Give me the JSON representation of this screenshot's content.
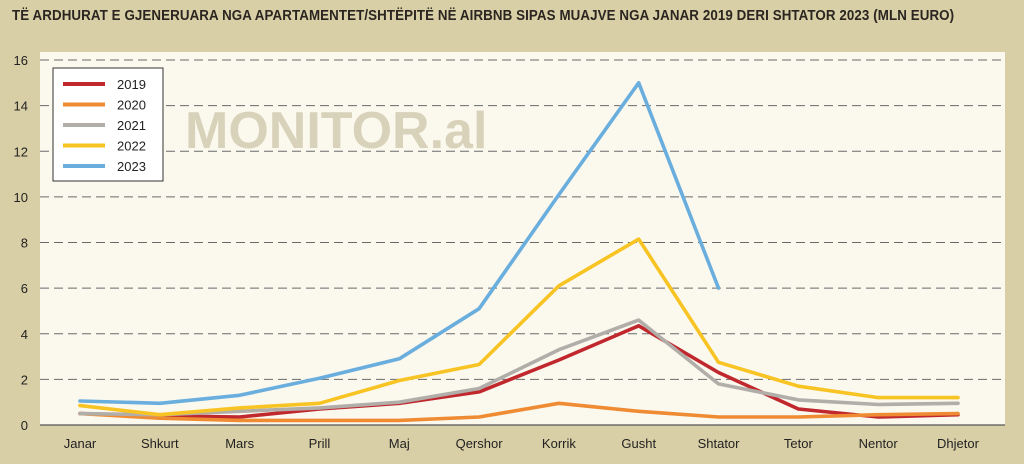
{
  "chart_data": {
    "type": "line",
    "title": "TË ARDHURAT E GJENERUARA NGA APARTAMENTET/SHTËPITË NË AIRBNB SIPAS MUAJVE NGA JANAR 2019 DERI SHTATOR 2023 (MLN EURO)",
    "watermark": "MONITOR.al",
    "categories": [
      "Janar",
      "Shkurt",
      "Mars",
      "Prill",
      "Maj",
      "Qershor",
      "Korrik",
      "Gusht",
      "Shtator",
      "Tetor",
      "Nentor",
      "Dhjetor"
    ],
    "ylim": [
      0,
      16
    ],
    "yticks": [
      0,
      2,
      4,
      6,
      8,
      10,
      12,
      14,
      16
    ],
    "grid": true,
    "legend_position": "top-left",
    "series": [
      {
        "name": "2019",
        "color": "#c0282d",
        "values": [
          0.5,
          0.4,
          0.35,
          0.7,
          0.95,
          1.45,
          2.85,
          4.35,
          2.3,
          0.7,
          0.35,
          0.45
        ]
      },
      {
        "name": "2020",
        "color": "#ee8b33",
        "values": [
          0.5,
          0.3,
          0.2,
          0.2,
          0.2,
          0.35,
          0.95,
          0.6,
          0.35,
          0.35,
          0.45,
          0.5
        ]
      },
      {
        "name": "2021",
        "color": "#b1aeaa",
        "values": [
          0.5,
          0.45,
          0.6,
          0.75,
          1.0,
          1.6,
          3.3,
          4.6,
          1.8,
          1.1,
          0.9,
          0.95
        ]
      },
      {
        "name": "2022",
        "color": "#f7c423",
        "values": [
          0.85,
          0.45,
          0.75,
          0.95,
          1.95,
          2.65,
          6.1,
          8.15,
          2.75,
          1.7,
          1.2,
          1.2
        ]
      },
      {
        "name": "2023",
        "color": "#6aaede",
        "values": [
          1.05,
          0.95,
          1.3,
          2.05,
          2.9,
          5.1,
          10.1,
          15.0,
          6.0,
          null,
          null,
          null
        ]
      }
    ]
  }
}
